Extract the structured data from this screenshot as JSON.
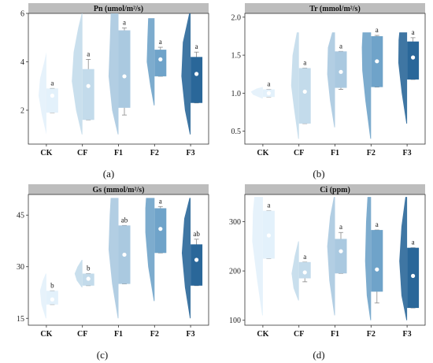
{
  "colors": {
    "CK": "#e3f1fb",
    "CF": "#c3dbeb",
    "F1": "#aac9e0",
    "F2": "#6fa3c9",
    "F3": "#2a6799",
    "title_bar": "#bdbdbd",
    "mean_dot": "#ffffff"
  },
  "chart_data": [
    {
      "type": "half-violin-box",
      "title": "Pn (umol/m²/s)",
      "panel_label": "(a)",
      "categories": [
        "CK",
        "CF",
        "F1",
        "F2",
        "F3"
      ],
      "ylim": [
        0.6,
        6.0
      ],
      "yticks": [
        2,
        4,
        6
      ],
      "violin": [
        {
          "min": 1.0,
          "max": 4.4,
          "pts": [
            [
              1.0,
              0
            ],
            [
              1.8,
              0.32
            ],
            [
              2.6,
              0.55
            ],
            [
              3.3,
              0.45
            ],
            [
              4.0,
              0.15
            ],
            [
              4.4,
              0
            ]
          ]
        },
        {
          "min": 1.0,
          "max": 6.0,
          "pts": [
            [
              1.0,
              0.05
            ],
            [
              2.0,
              0.45
            ],
            [
              3.2,
              0.75
            ],
            [
              4.4,
              0.62
            ],
            [
              5.4,
              0.3
            ],
            [
              6.0,
              0.05
            ]
          ]
        },
        {
          "min": 1.0,
          "max": 6.0,
          "pts": [
            [
              1.0,
              0.05
            ],
            [
              2.0,
              0.45
            ],
            [
              3.4,
              0.7
            ],
            [
              5.0,
              0.6
            ],
            [
              6.0,
              0.55
            ]
          ]
        },
        {
          "min": 2.2,
          "max": 5.8,
          "pts": [
            [
              2.2,
              0.05
            ],
            [
              3.0,
              0.3
            ],
            [
              4.0,
              0.55
            ],
            [
              5.0,
              0.5
            ],
            [
              5.8,
              0.45
            ]
          ]
        },
        {
          "min": 1.0,
          "max": 6.0,
          "pts": [
            [
              1.0,
              0.05
            ],
            [
              2.0,
              0.4
            ],
            [
              3.4,
              0.65
            ],
            [
              4.8,
              0.55
            ],
            [
              6.0,
              0.1
            ]
          ]
        }
      ],
      "box": [
        {
          "q1": 1.9,
          "q3": 2.9,
          "mean": 2.6,
          "whisker_low": 1.9,
          "whisker_high": 2.9
        },
        {
          "q1": 1.6,
          "q3": 3.7,
          "mean": 3.0,
          "whisker_low": 1.6,
          "whisker_high": 4.1
        },
        {
          "q1": 2.1,
          "q3": 5.3,
          "mean": 3.4,
          "whisker_low": 1.8,
          "whisker_high": 5.4
        },
        {
          "q1": 3.4,
          "q3": 4.5,
          "mean": 4.1,
          "whisker_low": 3.4,
          "whisker_high": 4.6
        },
        {
          "q1": 2.3,
          "q3": 4.2,
          "mean": 3.5,
          "whisker_low": 2.3,
          "whisker_high": 4.4
        }
      ],
      "sig": [
        "a",
        "a",
        "a",
        "a",
        "a"
      ]
    },
    {
      "type": "half-violin-box",
      "title": "Tr (mmol/m²/s)",
      "panel_label": "(b)",
      "categories": [
        "CK",
        "CF",
        "F1",
        "F2",
        "F3"
      ],
      "ylim": [
        0.33,
        2.05
      ],
      "yticks": [
        0.5,
        1.0,
        1.5,
        2.0
      ],
      "violin": [
        {
          "min": 0.93,
          "max": 1.08,
          "pts": [
            [
              0.93,
              0.05
            ],
            [
              0.98,
              0.7
            ],
            [
              1.02,
              0.85
            ],
            [
              1.06,
              0.45
            ],
            [
              1.08,
              0.05
            ]
          ]
        },
        {
          "min": 0.4,
          "max": 1.8,
          "pts": [
            [
              0.4,
              0.05
            ],
            [
              0.8,
              0.35
            ],
            [
              1.1,
              0.55
            ],
            [
              1.5,
              0.45
            ],
            [
              1.8,
              0.15
            ]
          ]
        },
        {
          "min": 0.55,
          "max": 1.8,
          "pts": [
            [
              0.55,
              0.05
            ],
            [
              0.9,
              0.35
            ],
            [
              1.25,
              0.55
            ],
            [
              1.6,
              0.5
            ],
            [
              1.8,
              0.2
            ]
          ]
        },
        {
          "min": 0.4,
          "max": 1.8,
          "pts": [
            [
              0.4,
              0.05
            ],
            [
              0.9,
              0.4
            ],
            [
              1.3,
              0.62
            ],
            [
              1.6,
              0.65
            ],
            [
              1.8,
              0.6
            ]
          ]
        },
        {
          "min": 0.6,
          "max": 1.8,
          "pts": [
            [
              0.6,
              0.05
            ],
            [
              1.0,
              0.38
            ],
            [
              1.4,
              0.62
            ],
            [
              1.7,
              0.6
            ],
            [
              1.8,
              0.55
            ]
          ]
        }
      ],
      "box": [
        {
          "q1": 0.95,
          "q3": 1.05,
          "mean": 1.0,
          "whisker_low": 0.95,
          "whisker_high": 1.05
        },
        {
          "q1": 0.6,
          "q3": 1.33,
          "mean": 1.02,
          "whisker_low": 0.6,
          "whisker_high": 1.33
        },
        {
          "q1": 1.07,
          "q3": 1.55,
          "mean": 1.28,
          "whisker_low": 1.05,
          "whisker_high": 1.55
        },
        {
          "q1": 1.08,
          "q3": 1.75,
          "mean": 1.42,
          "whisker_low": 1.08,
          "whisker_high": 1.76
        },
        {
          "q1": 1.18,
          "q3": 1.68,
          "mean": 1.47,
          "whisker_low": 1.18,
          "whisker_high": 1.73
        }
      ],
      "sig": [
        "a",
        "a",
        "a",
        "a",
        "a"
      ]
    },
    {
      "type": "half-violin-box",
      "title": "Gs (mmol/m²/s)",
      "panel_label": "(c)",
      "categories": [
        "CK",
        "CF",
        "F1",
        "F2",
        "F3"
      ],
      "ylim": [
        13,
        51
      ],
      "yticks": [
        15,
        30,
        45
      ],
      "violin": [
        {
          "min": 15,
          "max": 28,
          "pts": [
            [
              15,
              0.05
            ],
            [
              19,
              0.35
            ],
            [
              23,
              0.45
            ],
            [
              26,
              0.25
            ],
            [
              28,
              0.05
            ]
          ]
        },
        {
          "min": 24,
          "max": 32,
          "pts": [
            [
              24,
              0.05
            ],
            [
              26,
              0.4
            ],
            [
              28,
              0.55
            ],
            [
              30,
              0.35
            ],
            [
              32,
              0.05
            ]
          ]
        },
        {
          "min": 15,
          "max": 50,
          "pts": [
            [
              15,
              0.05
            ],
            [
              25,
              0.45
            ],
            [
              35,
              0.7
            ],
            [
              45,
              0.62
            ],
            [
              50,
              0.55
            ]
          ]
        },
        {
          "min": 20,
          "max": 50,
          "pts": [
            [
              20,
              0.05
            ],
            [
              30,
              0.45
            ],
            [
              40,
              0.65
            ],
            [
              47,
              0.65
            ],
            [
              50,
              0.6
            ]
          ]
        },
        {
          "min": 15,
          "max": 50,
          "pts": [
            [
              15,
              0.05
            ],
            [
              24,
              0.4
            ],
            [
              34,
              0.62
            ],
            [
              44,
              0.45
            ],
            [
              50,
              0.08
            ]
          ]
        }
      ],
      "box": [
        {
          "q1": 19,
          "q3": 23,
          "mean": 20.5,
          "whisker_low": 19,
          "whisker_high": 23
        },
        {
          "q1": 24.5,
          "q3": 28,
          "mean": 26.5,
          "whisker_low": 24.5,
          "whisker_high": 28
        },
        {
          "q1": 25,
          "q3": 42,
          "mean": 33.5,
          "whisker_low": 25,
          "whisker_high": 42
        },
        {
          "q1": 34,
          "q3": 47,
          "mean": 41,
          "whisker_low": 34,
          "whisker_high": 47.5
        },
        {
          "q1": 24.5,
          "q3": 36.5,
          "mean": 32,
          "whisker_low": 24.5,
          "whisker_high": 38
        }
      ],
      "sig": [
        "b",
        "b",
        "ab",
        "a",
        "ab"
      ]
    },
    {
      "type": "half-violin-box",
      "title": "Ci (ppm)",
      "panel_label": "(d)",
      "categories": [
        "CK",
        "CF",
        "F1",
        "F2",
        "F3"
      ],
      "ylim": [
        90,
        355
      ],
      "yticks": [
        100,
        200,
        300
      ],
      "violin": [
        {
          "min": 110,
          "max": 350,
          "pts": [
            [
              110,
              0.05
            ],
            [
              180,
              0.4
            ],
            [
              260,
              0.75
            ],
            [
              320,
              0.7
            ],
            [
              350,
              0.6
            ]
          ]
        },
        {
          "min": 140,
          "max": 260,
          "pts": [
            [
              140,
              0.05
            ],
            [
              165,
              0.38
            ],
            [
              195,
              0.52
            ],
            [
              230,
              0.3
            ],
            [
              260,
              0.05
            ]
          ]
        },
        {
          "min": 110,
          "max": 350,
          "pts": [
            [
              110,
              0.05
            ],
            [
              180,
              0.4
            ],
            [
              250,
              0.55
            ],
            [
              310,
              0.35
            ],
            [
              350,
              0.08
            ]
          ]
        },
        {
          "min": 100,
          "max": 350,
          "pts": [
            [
              100,
              0.05
            ],
            [
              150,
              0.3
            ],
            [
              220,
              0.42
            ],
            [
              300,
              0.35
            ],
            [
              350,
              0.25
            ]
          ]
        },
        {
          "min": 100,
          "max": 350,
          "pts": [
            [
              100,
              0.05
            ],
            [
              150,
              0.4
            ],
            [
              220,
              0.55
            ],
            [
              290,
              0.4
            ],
            [
              350,
              0.12
            ]
          ]
        }
      ],
      "box": [
        {
          "q1": 225,
          "q3": 322,
          "mean": 272,
          "whisker_low": 225,
          "whisker_high": 322
        },
        {
          "q1": 185,
          "q3": 218,
          "mean": 197,
          "whisker_low": 178,
          "whisker_high": 218
        },
        {
          "q1": 195,
          "q3": 265,
          "mean": 240,
          "whisker_low": 195,
          "whisker_high": 278
        },
        {
          "q1": 158,
          "q3": 283,
          "mean": 203,
          "whisker_low": 135,
          "whisker_high": 283
        },
        {
          "q1": 125,
          "q3": 247,
          "mean": 190,
          "whisker_low": 125,
          "whisker_high": 247
        }
      ],
      "sig": [
        "a",
        "a",
        "a",
        "a",
        "a"
      ]
    }
  ]
}
